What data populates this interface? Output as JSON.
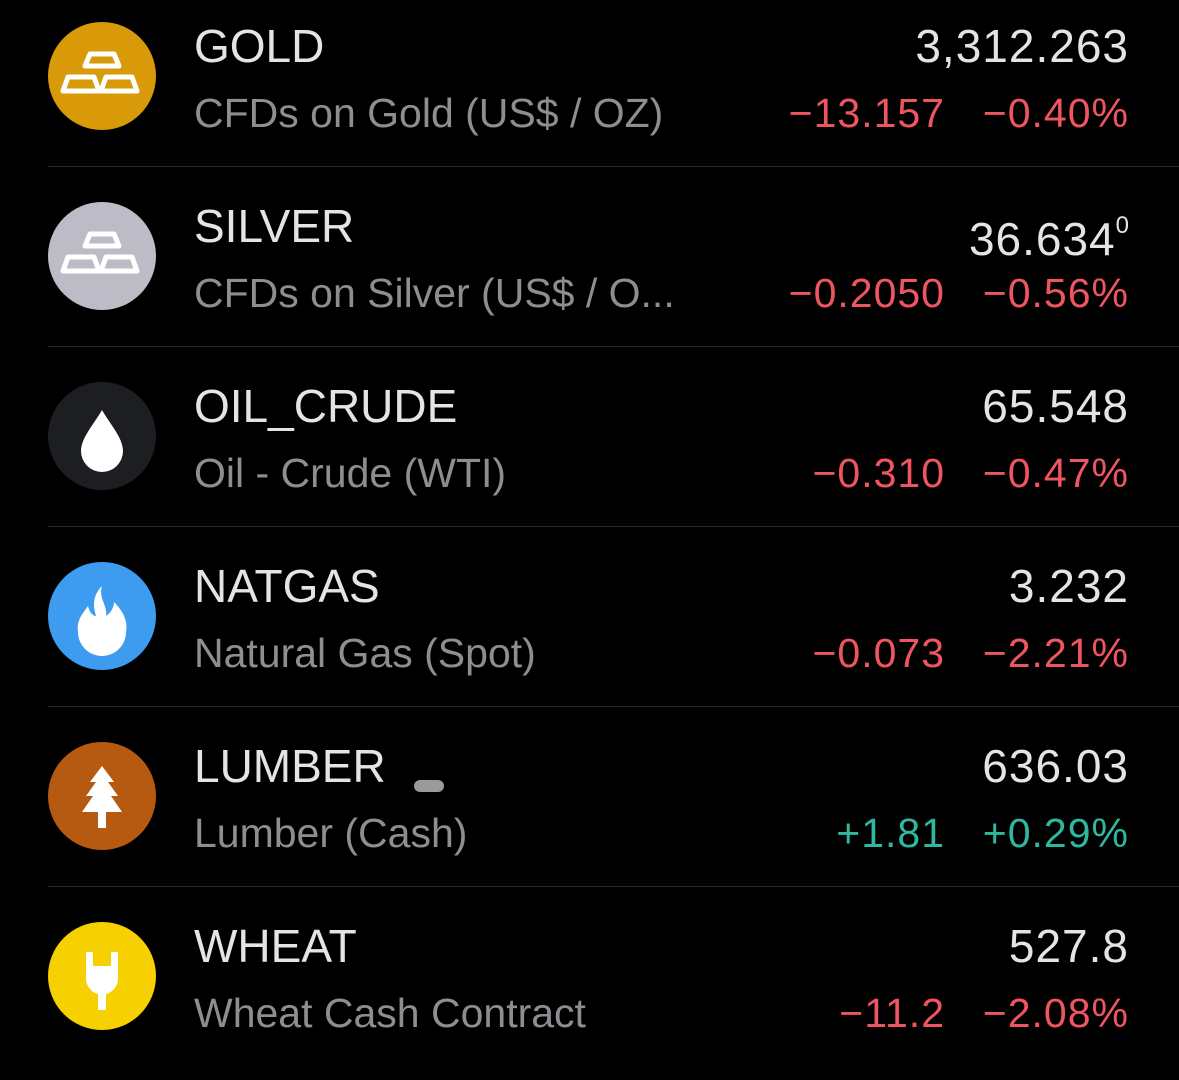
{
  "rows": [
    {
      "symbol": "GOLD",
      "description": "CFDs on Gold (US$ / OZ)",
      "price": "3,312.263",
      "change": "−13.157",
      "change_pct": "−0.40%"
    },
    {
      "symbol": "SILVER",
      "description": "CFDs on Silver (US$ / O...",
      "price": "36.634",
      "price_sup": "0",
      "change": "−0.2050",
      "change_pct": "−0.56%"
    },
    {
      "symbol": "OIL_CRUDE",
      "description": "Oil - Crude (WTI)",
      "price": "65.548",
      "change": "−0.310",
      "change_pct": "−0.47%"
    },
    {
      "symbol": "NATGAS",
      "description": "Natural Gas (Spot)",
      "price": "3.232",
      "change": "−0.073",
      "change_pct": "−2.21%"
    },
    {
      "symbol": "LUMBER",
      "description": "Lumber (Cash)",
      "price": "636.03",
      "change": "+1.81",
      "change_pct": "+0.29%"
    },
    {
      "symbol": "WHEAT",
      "description": "Wheat Cash Contract",
      "price": "527.8",
      "change": "−11.2",
      "change_pct": "−2.08%"
    }
  ]
}
